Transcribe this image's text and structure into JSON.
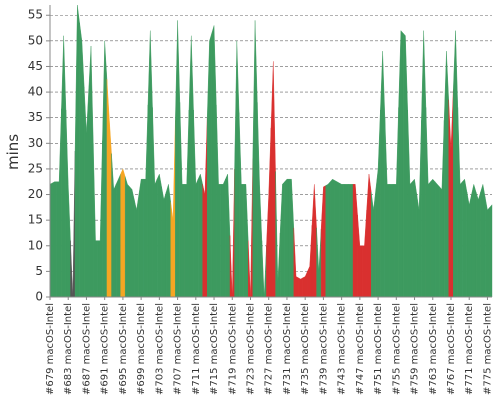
{
  "chart_data": {
    "type": "area",
    "y_label": "mins",
    "categories": [
      "#679 macOS-Intel",
      null,
      null,
      null,
      "#683 macOS-Intel",
      null,
      null,
      null,
      "#687 macOS-Intel",
      null,
      null,
      null,
      "#691 macOS-Intel",
      null,
      null,
      null,
      "#695 macOS-Intel",
      null,
      null,
      null,
      "#699 macOS-Intel",
      null,
      null,
      null,
      "#703 macOS-Intel",
      null,
      null,
      null,
      "#707 macOS-Intel",
      null,
      null,
      null,
      "#711 macOS-Intel",
      null,
      null,
      null,
      "#715 macOS-Intel",
      null,
      null,
      null,
      "#719 macOS-Intel",
      null,
      null,
      null,
      "#723 macOS-Intel",
      null,
      null,
      null,
      "#727 macOS-Intel",
      null,
      null,
      null,
      "#731 macOS-Intel",
      null,
      null,
      null,
      "#735 macOS-Intel",
      null,
      null,
      null,
      "#739 macOS-Intel",
      null,
      null,
      null,
      "#743 macOS-Intel",
      null,
      null,
      null,
      "#747 macOS-Intel",
      null,
      null,
      null,
      "#751 macOS-Intel",
      null,
      null,
      null,
      "#755 macOS-Intel",
      null,
      null,
      null,
      "#759 macOS-Intel",
      null,
      null,
      null,
      "#763 macOS-Intel",
      null,
      null,
      null,
      "#767 macOS-Intel",
      null,
      null,
      null,
      "#771 macOS-Intel",
      null,
      null,
      null,
      "#775 macOS-Intel",
      null
    ],
    "values": [
      22,
      22.5,
      22.5,
      51,
      22,
      0,
      57,
      50,
      32,
      49,
      11,
      11,
      50,
      35,
      21,
      23,
      25,
      22,
      21,
      17,
      23,
      23,
      52,
      22,
      24,
      19,
      22,
      15,
      54,
      22,
      22,
      51,
      22,
      24,
      20,
      50,
      53,
      22,
      22,
      24,
      0,
      50,
      22,
      22,
      0,
      54,
      22,
      0,
      20,
      46,
      3,
      22,
      23,
      23,
      4,
      3.5,
      4,
      6,
      22,
      5,
      21.5,
      22,
      23,
      22.5,
      22,
      22,
      22,
      22,
      10,
      10,
      24,
      17,
      25,
      48,
      22,
      22,
      22,
      52,
      51,
      22,
      23,
      17,
      52,
      22,
      23,
      22,
      21,
      48,
      29,
      52,
      22,
      23,
      18,
      22,
      19,
      22,
      17,
      18
    ],
    "colors": [
      "#3d9a5f",
      "#3d9a5f",
      "#3d9a5f",
      "#3d9a5f",
      "#3d9a5f",
      "#555555",
      "#3d9a5f",
      "#3d9a5f",
      "#3d9a5f",
      "#3d9a5f",
      "#3d9a5f",
      "#3d9a5f",
      "#3d9a5f",
      "#f5a623",
      "#3d9a5f",
      "#3d9a5f",
      "#f5a623",
      "#3d9a5f",
      "#3d9a5f",
      "#3d9a5f",
      "#3d9a5f",
      "#3d9a5f",
      "#3d9a5f",
      "#3d9a5f",
      "#3d9a5f",
      "#3d9a5f",
      "#3d9a5f",
      "#f5a623",
      "#3d9a5f",
      "#3d9a5f",
      "#3d9a5f",
      "#3d9a5f",
      "#3d9a5f",
      "#3d9a5f",
      "#d9302f",
      "#3d9a5f",
      "#3d9a5f",
      "#3d9a5f",
      "#3d9a5f",
      "#3d9a5f",
      "#d9302f",
      "#3d9a5f",
      "#3d9a5f",
      "#3d9a5f",
      "#d9302f",
      "#3d9a5f",
      "#3d9a5f",
      "#3d9a5f",
      "#d9302f",
      "#d9302f",
      "#3d9a5f",
      "#3d9a5f",
      "#3d9a5f",
      "#3d9a5f",
      "#d9302f",
      "#d9302f",
      "#d9302f",
      "#d9302f",
      "#d9302f",
      "#3d9a5f",
      "#d9302f",
      "#3d9a5f",
      "#3d9a5f",
      "#3d9a5f",
      "#3d9a5f",
      "#3d9a5f",
      "#3d9a5f",
      "#d9302f",
      "#d9302f",
      "#d9302f",
      "#d9302f",
      "#3d9a5f",
      "#3d9a5f",
      "#3d9a5f",
      "#3d9a5f",
      "#3d9a5f",
      "#3d9a5f",
      "#3d9a5f",
      "#3d9a5f",
      "#3d9a5f",
      "#3d9a5f",
      "#3d9a5f",
      "#3d9a5f",
      "#3d9a5f",
      "#3d9a5f",
      "#3d9a5f",
      "#3d9a5f",
      "#3d9a5f",
      "#d9302f",
      "#3d9a5f",
      "#3d9a5f",
      "#3d9a5f",
      "#3d9a5f",
      "#3d9a5f",
      "#3d9a5f",
      "#3d9a5f",
      "#3d9a5f",
      "#3d9a5f"
    ],
    "ylim": [
      0,
      57
    ],
    "yticks": [
      0,
      5,
      10,
      15,
      20,
      25,
      30,
      35,
      40,
      45,
      50,
      55
    ],
    "grid": true
  }
}
